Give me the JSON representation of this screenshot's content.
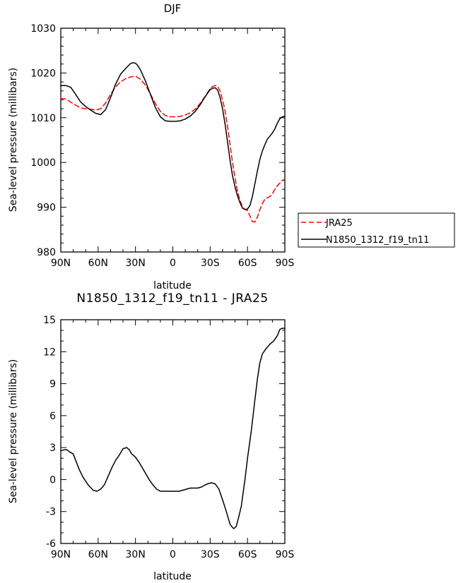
{
  "chart_data": [
    {
      "type": "line",
      "title": "DJF",
      "xlabel": "latitude",
      "ylabel": "Sea-level pressure (millibars)",
      "x_tick_values": [
        90,
        60,
        30,
        0,
        -30,
        -60,
        -90
      ],
      "x_tick_labels": [
        "90N",
        "60N",
        "30N",
        "0",
        "30S",
        "60S",
        "90S"
      ],
      "xlim": [
        90,
        -90
      ],
      "ylim": [
        980,
        1030
      ],
      "y_ticks": [
        980,
        990,
        1000,
        1010,
        1020,
        1030
      ],
      "grid": false,
      "legend_position": "right",
      "series": [
        {
          "name": "JRA25",
          "color": "#ff0000",
          "dash": "dashed",
          "x": [
            90,
            86,
            82,
            78,
            74,
            70,
            66,
            62,
            58,
            54,
            50,
            46,
            42,
            38,
            34,
            30,
            26,
            22,
            18,
            14,
            10,
            6,
            2,
            -2,
            -6,
            -10,
            -14,
            -18,
            -22,
            -26,
            -30,
            -32,
            -34,
            -36,
            -38,
            -40,
            -42,
            -44,
            -46,
            -48,
            -50,
            -52,
            -54,
            -56,
            -58,
            -60,
            -62,
            -64,
            -66,
            -68,
            -70,
            -72,
            -74,
            -76,
            -78,
            -80,
            -82,
            -84,
            -86,
            -88,
            -90
          ],
          "y": [
            1014.3,
            1014.2,
            1013.5,
            1012.8,
            1012.2,
            1012.0,
            1011.9,
            1011.7,
            1012.0,
            1013.3,
            1015.2,
            1016.9,
            1018.0,
            1018.7,
            1019.1,
            1019.3,
            1018.6,
            1017.3,
            1015.3,
            1013.2,
            1011.4,
            1010.5,
            1010.2,
            1010.2,
            1010.3,
            1010.6,
            1011.1,
            1011.9,
            1013.2,
            1014.8,
            1016.5,
            1017.0,
            1017.2,
            1017.0,
            1016.0,
            1014.0,
            1011.5,
            1008.0,
            1004.0,
            1000.0,
            996.5,
            993.5,
            991.5,
            990.0,
            989.5,
            989.3,
            988.0,
            986.8,
            986.7,
            987.8,
            989.5,
            990.8,
            991.8,
            992.1,
            992.4,
            993.0,
            994.0,
            994.8,
            995.4,
            996.0,
            996.2
          ]
        },
        {
          "name": "N1850_1312_f19_tn11",
          "color": "#000000",
          "dash": "solid",
          "x": [
            90,
            86,
            82,
            78,
            74,
            70,
            66,
            62,
            58,
            54,
            50,
            46,
            42,
            38,
            34,
            32,
            30,
            28,
            26,
            22,
            18,
            14,
            10,
            6,
            2,
            -2,
            -6,
            -10,
            -14,
            -18,
            -22,
            -26,
            -30,
            -32,
            -34,
            -36,
            -38,
            -40,
            -42,
            -44,
            -46,
            -48,
            -50,
            -52,
            -54,
            -56,
            -58,
            -60,
            -62,
            -64,
            -66,
            -68,
            -70,
            -72,
            -74,
            -76,
            -78,
            -80,
            -82,
            -84,
            -86,
            -88,
            -90
          ],
          "y": [
            1017.2,
            1017.2,
            1016.8,
            1015.2,
            1013.5,
            1012.5,
            1011.7,
            1011.0,
            1010.7,
            1011.8,
            1014.5,
            1017.5,
            1019.7,
            1021.0,
            1022.1,
            1022.3,
            1022.2,
            1021.6,
            1020.7,
            1018.2,
            1015.2,
            1012.3,
            1010.2,
            1009.3,
            1009.2,
            1009.2,
            1009.3,
            1009.7,
            1010.4,
            1011.4,
            1012.9,
            1014.7,
            1016.3,
            1016.6,
            1016.7,
            1016.2,
            1014.5,
            1012.0,
            1008.5,
            1004.5,
            1000.5,
            997.0,
            994.5,
            992.5,
            991.0,
            989.8,
            989.5,
            989.6,
            990.4,
            992.5,
            995.3,
            998.2,
            1000.8,
            1002.6,
            1004.0,
            1005.2,
            1005.9,
            1006.6,
            1007.5,
            1008.8,
            1009.8,
            1010.2,
            1010.3
          ]
        }
      ]
    },
    {
      "type": "line",
      "title": "N1850_1312_f19_tn11 - JRA25",
      "xlabel": "latitude",
      "ylabel": "Sea-level pressure (millibars)",
      "x_tick_values": [
        90,
        60,
        30,
        0,
        -30,
        -60,
        -90
      ],
      "x_tick_labels": [
        "90N",
        "60N",
        "30N",
        "0",
        "30S",
        "60S",
        "90S"
      ],
      "xlim": [
        90,
        -90
      ],
      "ylim": [
        -6,
        15
      ],
      "y_ticks": [
        -6,
        -3,
        0,
        3,
        6,
        9,
        12,
        15
      ],
      "grid": false,
      "series": [
        {
          "color": "#000000",
          "dash": "solid",
          "x": [
            90,
            87,
            85,
            83,
            80,
            78,
            75,
            72,
            68,
            64,
            61,
            58,
            55,
            52,
            49,
            46,
            43,
            40,
            37,
            35,
            33,
            30,
            27,
            25,
            22,
            19,
            16,
            13,
            10,
            7,
            4,
            1,
            -2,
            -5,
            -8,
            -11,
            -14,
            -17,
            -20,
            -23,
            -26,
            -28,
            -31,
            -34,
            -37,
            -40,
            -43,
            -46,
            -48,
            -49,
            -51,
            -53,
            -55,
            -58,
            -60,
            -63,
            -66,
            -68,
            -70,
            -72,
            -75,
            -78,
            -81,
            -84,
            -86,
            -88,
            -90
          ],
          "y": [
            2.7,
            2.8,
            2.8,
            2.6,
            2.4,
            1.8,
            0.9,
            0.2,
            -0.5,
            -1.0,
            -1.1,
            -0.9,
            -0.5,
            0.3,
            1.1,
            1.8,
            2.3,
            2.9,
            3.0,
            2.8,
            2.4,
            2.1,
            1.6,
            1.2,
            0.6,
            0.0,
            -0.5,
            -0.9,
            -1.1,
            -1.1,
            -1.1,
            -1.1,
            -1.1,
            -1.1,
            -1.0,
            -0.9,
            -0.8,
            -0.8,
            -0.8,
            -0.7,
            -0.5,
            -0.4,
            -0.3,
            -0.4,
            -0.9,
            -1.9,
            -3.0,
            -4.2,
            -4.5,
            -4.6,
            -4.4,
            -3.5,
            -2.5,
            0.0,
            2.0,
            4.5,
            7.5,
            9.5,
            11.0,
            11.8,
            12.3,
            12.7,
            13.0,
            13.5,
            14.1,
            14.2,
            14.2
          ]
        }
      ]
    }
  ]
}
